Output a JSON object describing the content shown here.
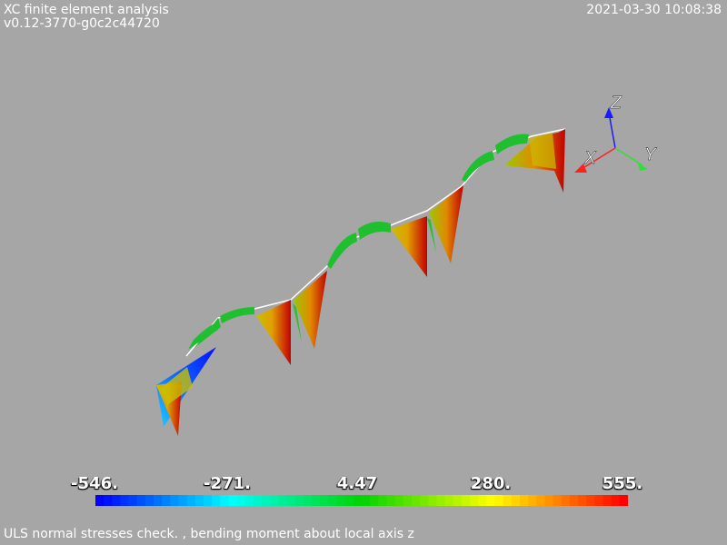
{
  "header": {
    "title": "XC finite element analysis",
    "version": "v0.12-3770-g0c2c44720",
    "timestamp": "2021-03-30 10:08:38"
  },
  "axes": {
    "x_label": "X",
    "y_label": "Y",
    "z_label": "Z"
  },
  "color_scale": {
    "ticks": [
      "-546.",
      "-271.",
      "4.47",
      "280.",
      "555."
    ],
    "min": -546,
    "max": 555,
    "colors": [
      "#0000ff",
      "#00ffff",
      "#00d400",
      "#ffff00",
      "#ff0000"
    ]
  },
  "caption": "ULS normal stresses check. , bending moment about local axis z"
}
